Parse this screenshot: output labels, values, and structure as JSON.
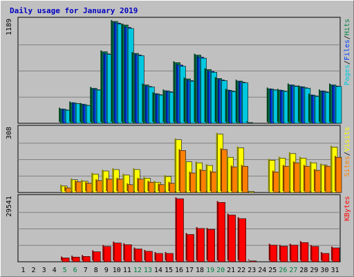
{
  "chart_data": {
    "type": "bar",
    "title": "Daily usage for January 2019",
    "days": [
      "1",
      "2",
      "3",
      "4",
      "5",
      "6",
      "7",
      "8",
      "9",
      "10",
      "11",
      "12",
      "13",
      "14",
      "15",
      "16",
      "17",
      "18",
      "19",
      "20",
      "21",
      "22",
      "23",
      "24",
      "25",
      "26",
      "27",
      "28",
      "29",
      "30",
      "31"
    ],
    "weekend_days": [
      "5",
      "6",
      "12",
      "13",
      "19",
      "20",
      "26",
      "27"
    ],
    "panels": [
      {
        "id": "top",
        "max_label": "1189",
        "ylim": [
          0,
          1189
        ],
        "legend": [
          {
            "text": "Pages",
            "color": "#00C8E0"
          },
          {
            "text": "/",
            "color": "#000000"
          },
          {
            "text": "Files",
            "color": "#0040FF"
          },
          {
            "text": "/",
            "color": "#000000"
          },
          {
            "text": "Hits",
            "color": "#008040"
          }
        ],
        "series": [
          {
            "name": "Hits",
            "color": "#008040",
            "values": [
              0,
              0,
              0,
              0,
              166,
              238,
              221,
              408,
              835,
              1189,
              1148,
              816,
              448,
              346,
              379,
              708,
              518,
              796,
              627,
              523,
              386,
              493,
              5,
              0,
              401,
              386,
              448,
              427,
              330,
              378,
              448
            ]
          },
          {
            "name": "Files",
            "color": "#0040FF",
            "values": [
              0,
              0,
              0,
              0,
              155,
              230,
              210,
              392,
              810,
              1170,
              1120,
              798,
              430,
              334,
              368,
              680,
              498,
              772,
              606,
              506,
              376,
              479,
              0,
              0,
              391,
              376,
              436,
              415,
              319,
              367,
              434
            ]
          },
          {
            "name": "Pages",
            "color": "#00C8E0",
            "values": [
              0,
              0,
              0,
              0,
              152,
              228,
              208,
              388,
              805,
              1158,
              1108,
              790,
              424,
              330,
              362,
              666,
              492,
              760,
              596,
              498,
              370,
              472,
              0,
              0,
              388,
              372,
              430,
              410,
              314,
              360,
              430
            ]
          }
        ]
      },
      {
        "id": "mid",
        "max_label": "308",
        "ylim": [
          0,
          308
        ],
        "legend": [
          {
            "text": "Sites",
            "color": "#FF8000"
          },
          {
            "text": "/",
            "color": "#000000"
          },
          {
            "text": "Visits",
            "color": "#FFFF00"
          }
        ],
        "series": [
          {
            "name": "Visits",
            "color": "#FFFF00",
            "values": [
              0,
              0,
              0,
              0,
              32,
              62,
              55,
              90,
              105,
              112,
              85,
              112,
              70,
              50,
              78,
              258,
              150,
              145,
              132,
              285,
              172,
              218,
              5,
              0,
              158,
              168,
              190,
              168,
              145,
              135,
              222
            ]
          },
          {
            "name": "Sites",
            "color": "#FF8000",
            "values": [
              0,
              0,
              0,
              0,
              22,
              52,
              45,
              58,
              65,
              65,
              38,
              65,
              50,
              38,
              45,
              205,
              95,
              108,
              100,
              210,
              125,
              128,
              0,
              0,
              100,
              128,
              145,
              128,
              108,
              128,
              172
            ]
          }
        ]
      },
      {
        "id": "bottom",
        "max_label": "29541",
        "ylim": [
          0,
          29541
        ],
        "legend": [
          {
            "text": "KBytes",
            "color": "#FF0000"
          }
        ],
        "series": [
          {
            "name": "KBytes",
            "color": "#FF0000",
            "values": [
              0,
              0,
              0,
              0,
              1800,
              2200,
              2500,
              4700,
              7200,
              8800,
              8000,
              6000,
              4900,
              3900,
              3900,
              29541,
              12800,
              15600,
              15200,
              27800,
              21900,
              20200,
              400,
              0,
              7800,
              7300,
              7800,
              9000,
              7200,
              3900,
              6500
            ]
          }
        ]
      }
    ]
  }
}
